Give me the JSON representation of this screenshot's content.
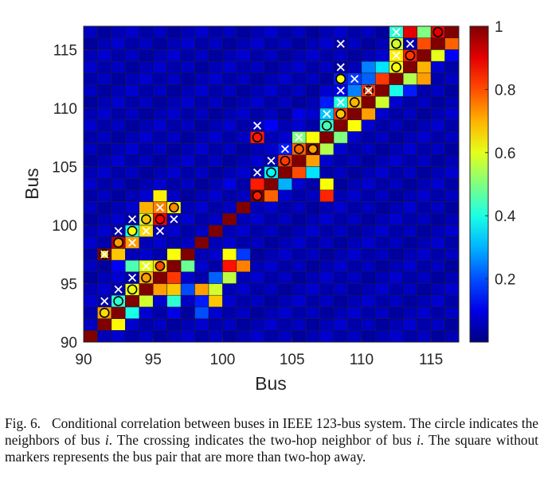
{
  "chart_data": {
    "type": "heatmap",
    "xlabel": "Bus",
    "ylabel": "Bus",
    "xlim": [
      90,
      117
    ],
    "ylim": [
      90,
      117
    ],
    "x_ticks": [
      "90",
      "95",
      "100",
      "105",
      "110",
      "115"
    ],
    "y_ticks": [
      "90",
      "95",
      "100",
      "105",
      "110",
      "115"
    ],
    "colorbar": {
      "range": [
        0,
        1
      ],
      "ticks": [
        "0.2",
        "0.4",
        "0.6",
        "0.8",
        "1"
      ],
      "colormap": "jet"
    },
    "background_value": 0.03,
    "cells": [
      [
        90,
        90,
        1.0
      ],
      [
        91,
        91,
        1.0
      ],
      [
        91,
        92,
        0.72
      ],
      [
        92,
        91,
        0.63
      ],
      [
        92,
        92,
        1.0
      ],
      [
        92,
        93,
        0.42
      ],
      [
        93,
        92,
        0.4
      ],
      [
        93,
        93,
        1.0
      ],
      [
        93,
        94,
        0.62
      ],
      [
        94,
        93,
        0.58
      ],
      [
        94,
        94,
        1.0
      ],
      [
        94,
        95,
        0.7
      ],
      [
        95,
        94,
        0.72
      ],
      [
        95,
        95,
        1.0
      ],
      [
        95,
        96,
        0.85
      ],
      [
        96,
        95,
        0.75
      ],
      [
        96,
        96,
        1.0
      ],
      [
        96,
        95,
        0.82
      ],
      [
        95,
        96,
        0.66
      ],
      [
        93,
        96,
        0.45
      ],
      [
        96,
        93,
        0.42
      ],
      [
        96,
        94,
        0.68
      ],
      [
        94,
        96,
        0.6
      ],
      [
        96,
        97,
        0.62
      ],
      [
        97,
        96,
        0.48
      ],
      [
        92,
        96,
        0.12
      ],
      [
        96,
        92,
        0.1
      ],
      [
        97,
        97,
        1.0
      ],
      [
        97,
        94,
        0.2
      ],
      [
        98,
        93,
        0.15
      ],
      [
        98,
        94,
        0.72
      ],
      [
        99,
        93,
        0.68
      ],
      [
        98,
        92,
        0.2
      ],
      [
        99,
        94,
        0.58
      ],
      [
        100,
        95,
        0.56
      ],
      [
        99,
        95,
        0.22
      ],
      [
        100,
        96,
        0.86
      ],
      [
        100,
        97,
        0.62
      ],
      [
        101,
        96,
        0.75
      ],
      [
        101,
        97,
        0.18
      ],
      [
        98,
        98,
        1.0
      ],
      [
        99,
        99,
        1.0
      ],
      [
        100,
        100,
        1.0
      ],
      [
        101,
        101,
        1.0
      ],
      [
        91,
        97,
        1.0
      ],
      [
        92,
        97,
        0.68
      ],
      [
        92,
        98,
        0.95
      ],
      [
        93,
        98,
        0.72
      ],
      [
        93,
        99,
        0.4
      ],
      [
        94,
        99,
        0.66
      ],
      [
        94,
        100,
        0.58
      ],
      [
        95,
        100,
        0.88
      ],
      [
        95,
        101,
        0.75
      ],
      [
        96,
        101,
        0.62
      ],
      [
        95,
        102,
        0.64
      ],
      [
        94,
        101,
        0.7
      ],
      [
        102,
        102,
        1.0
      ],
      [
        102,
        103,
        0.85
      ],
      [
        103,
        102,
        0.78
      ],
      [
        103,
        103,
        1.0
      ],
      [
        104,
        103,
        0.3
      ],
      [
        103,
        104,
        0.36
      ],
      [
        104,
        104,
        1.0
      ],
      [
        104,
        105,
        0.82
      ],
      [
        105,
        104,
        0.8
      ],
      [
        105,
        105,
        1.0
      ],
      [
        105,
        106,
        0.78
      ],
      [
        106,
        105,
        0.72
      ],
      [
        106,
        106,
        1.0
      ],
      [
        106,
        107,
        0.62
      ],
      [
        107,
        106,
        0.55
      ],
      [
        107,
        103,
        0.62
      ],
      [
        107,
        102,
        0.84
      ],
      [
        104,
        106,
        0.15
      ],
      [
        105,
        107,
        0.5
      ],
      [
        106,
        104,
        0.35
      ],
      [
        102,
        107,
        0.85
      ],
      [
        103,
        108,
        0.12
      ],
      [
        104,
        104,
        1.0
      ],
      [
        107,
        107,
        1.0
      ],
      [
        108,
        107,
        0.5
      ],
      [
        107,
        108,
        0.42
      ],
      [
        108,
        108,
        1.0
      ],
      [
        108,
        109,
        0.82
      ],
      [
        109,
        108,
        0.62
      ],
      [
        109,
        109,
        1.0
      ],
      [
        109,
        110,
        0.68
      ],
      [
        110,
        109,
        0.72
      ],
      [
        110,
        110,
        1.0
      ],
      [
        110,
        111,
        0.82
      ],
      [
        111,
        110,
        0.58
      ],
      [
        111,
        111,
        1.0
      ],
      [
        111,
        112,
        0.82
      ],
      [
        112,
        111,
        0.35
      ],
      [
        112,
        112,
        1.0
      ],
      [
        112,
        113,
        0.62
      ],
      [
        113,
        112,
        0.55
      ],
      [
        107,
        109,
        0.32
      ],
      [
        108,
        110,
        0.4
      ],
      [
        109,
        111,
        0.25
      ],
      [
        110,
        112,
        0.22
      ],
      [
        111,
        113,
        0.35
      ],
      [
        112,
        114,
        0.4
      ],
      [
        108,
        111,
        0.1
      ],
      [
        109,
        112,
        0.18
      ],
      [
        110,
        113,
        0.25
      ],
      [
        107,
        110,
        0.15
      ],
      [
        108,
        112,
        0.15
      ],
      [
        113,
        113,
        1.0
      ],
      [
        113,
        114,
        0.85
      ],
      [
        114,
        113,
        0.7
      ],
      [
        114,
        114,
        1.0
      ],
      [
        114,
        115,
        0.8
      ],
      [
        115,
        114,
        0.6
      ],
      [
        115,
        115,
        1.0
      ],
      [
        115,
        116,
        0.9
      ],
      [
        116,
        115,
        0.78
      ],
      [
        116,
        116,
        1.0
      ],
      [
        114,
        116,
        0.5
      ],
      [
        116,
        114,
        0.12
      ],
      [
        112,
        116,
        0.88
      ],
      [
        113,
        116,
        0.9
      ],
      [
        114,
        112,
        0.72
      ],
      [
        112,
        115,
        0.58
      ],
      [
        112,
        114,
        0.64
      ],
      [
        112,
        113,
        0.62
      ],
      [
        112,
        116,
        0.42
      ],
      [
        113,
        111,
        0.15
      ],
      [
        100,
        103,
        0.1
      ],
      [
        105,
        109,
        0.1
      ],
      [
        107,
        111,
        0.08
      ],
      [
        112,
        111,
        0.4
      ]
    ],
    "circles": [
      [
        91,
        92,
        0.66
      ],
      [
        92,
        93,
        0.42
      ],
      [
        93,
        94,
        0.6
      ],
      [
        94,
        95,
        0.72
      ],
      [
        95,
        96,
        0.8
      ],
      [
        91,
        97,
        0.66
      ],
      [
        92,
        98,
        0.72
      ],
      [
        93,
        99,
        0.62
      ],
      [
        94,
        100,
        0.68
      ],
      [
        95,
        100,
        0.88
      ],
      [
        96,
        101,
        0.74
      ],
      [
        102,
        102,
        0.85
      ],
      [
        102,
        107,
        0.85
      ],
      [
        103,
        104,
        0.38
      ],
      [
        104,
        105,
        0.82
      ],
      [
        105,
        106,
        0.78
      ],
      [
        106,
        106,
        0.72
      ],
      [
        107,
        108,
        0.45
      ],
      [
        108,
        109,
        0.68
      ],
      [
        108,
        112,
        0.62
      ],
      [
        109,
        110,
        0.7
      ],
      [
        110,
        111,
        0.8
      ],
      [
        112,
        113,
        0.62
      ],
      [
        112,
        115,
        0.58
      ],
      [
        113,
        114,
        0.82
      ],
      [
        115,
        116,
        0.9
      ]
    ],
    "crosses": [
      [
        91,
        93
      ],
      [
        92,
        94
      ],
      [
        93,
        95
      ],
      [
        94,
        96
      ],
      [
        93,
        98
      ],
      [
        91,
        97
      ],
      [
        92,
        99
      ],
      [
        93,
        100
      ],
      [
        94,
        99
      ],
      [
        95,
        101
      ],
      [
        96,
        100
      ],
      [
        95,
        99
      ],
      [
        102,
        104
      ],
      [
        102,
        108
      ],
      [
        103,
        105
      ],
      [
        104,
        106
      ],
      [
        105,
        107
      ],
      [
        107,
        109
      ],
      [
        108,
        110
      ],
      [
        108,
        113
      ],
      [
        108,
        115
      ],
      [
        109,
        112
      ],
      [
        108,
        111
      ],
      [
        110,
        111
      ],
      [
        112,
        116
      ],
      [
        113,
        115
      ],
      [
        112,
        114
      ]
    ]
  },
  "caption": {
    "label": "Fig. 6.",
    "text": "Conditional correlation between buses in IEEE 123-bus system. The circle indicates the neighbors of bus i. The crossing indicates the two-hop neighbor of bus i. The square without markers represents the bus pair that are more than two-hop away."
  }
}
